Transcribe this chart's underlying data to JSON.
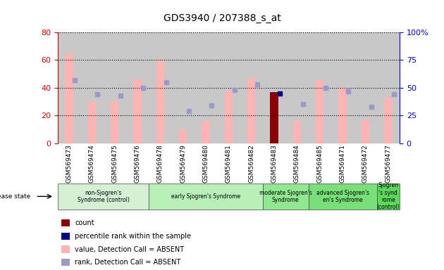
{
  "title": "GDS3940 / 207388_s_at",
  "samples": [
    "GSM569473",
    "GSM569474",
    "GSM569475",
    "GSM569476",
    "GSM569478",
    "GSM569479",
    "GSM569480",
    "GSM569481",
    "GSM569482",
    "GSM569483",
    "GSM569484",
    "GSM569485",
    "GSM569471",
    "GSM569472",
    "GSM569477"
  ],
  "bar_values": [
    65,
    30,
    30,
    46,
    59,
    10,
    16,
    38,
    47,
    37,
    16,
    46,
    40,
    17,
    33
  ],
  "bar_colors": [
    "#ffb3b3",
    "#ffb3b3",
    "#ffb3b3",
    "#ffb3b3",
    "#ffb3b3",
    "#ffb3b3",
    "#ffb3b3",
    "#ffb3b3",
    "#ffb3b3",
    "#8b0000",
    "#ffb3b3",
    "#ffb3b3",
    "#ffb3b3",
    "#ffb3b3",
    "#ffb3b3"
  ],
  "rank_scatter": [
    57,
    44,
    43,
    50,
    55,
    29,
    34,
    48,
    53,
    45,
    35,
    50,
    47,
    33,
    44
  ],
  "rank_colors": [
    "#9999cc",
    "#9999cc",
    "#9999cc",
    "#9999cc",
    "#9999cc",
    "#9999cc",
    "#9999cc",
    "#9999cc",
    "#9999cc",
    "#00008b",
    "#9999cc",
    "#9999cc",
    "#9999cc",
    "#9999cc",
    "#9999cc"
  ],
  "groups": [
    {
      "label": "non-Sjogren's\nSyndrome (control)",
      "start": 0,
      "end": 3,
      "color": "#d4f0d4"
    },
    {
      "label": "early Sjogren's Syndrome",
      "start": 4,
      "end": 8,
      "color": "#b8f0b8"
    },
    {
      "label": "moderate Sjogren's\nSyndrome",
      "start": 9,
      "end": 10,
      "color": "#90e890"
    },
    {
      "label": "advanced Sjogren's\nen's Syndrome",
      "start": 11,
      "end": 13,
      "color": "#78e078"
    },
    {
      "label": "Sjogren\n's synd\nrome\n(control)",
      "start": 14,
      "end": 14,
      "color": "#5cd85c"
    }
  ],
  "ylim_left": [
    0,
    80
  ],
  "ylim_right": [
    0,
    100
  ],
  "yticks_left": [
    0,
    20,
    40,
    60,
    80
  ],
  "yticks_right": [
    0,
    25,
    50,
    75,
    100
  ],
  "left_axis_color": "#cc0000",
  "right_axis_color": "#0000cc",
  "bar_width": 0.35,
  "bg_color": "#c8c8c8",
  "legend_entries": [
    {
      "color": "#8b0000",
      "label": "count"
    },
    {
      "color": "#00008b",
      "label": "percentile rank within the sample"
    },
    {
      "color": "#ffb3b3",
      "label": "value, Detection Call = ABSENT"
    },
    {
      "color": "#9999cc",
      "label": "rank, Detection Call = ABSENT"
    }
  ]
}
